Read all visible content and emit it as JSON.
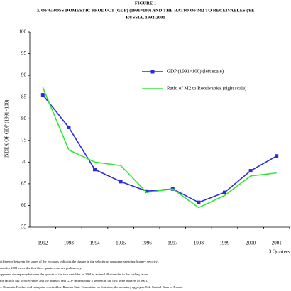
{
  "chart_data": {
    "type": "line",
    "title": "FIGURE 1",
    "subtitle": "X OF GROSS DOMESTIC PRODUCT (GDP) (1991=100) AND THE RATIO OF M2 TO RECEIVABLES (YE",
    "subtitle2": "RUSSIA, 1992-2001",
    "y_label": "INDEX OF GDP (1991=100)",
    "x_note": "3 Quarters",
    "categories": [
      "1992",
      "1993",
      "1994",
      "1995",
      "1996",
      "1997",
      "1998",
      "1999",
      "2000",
      "2001"
    ],
    "series": [
      {
        "name": "GDP (1991=100) (left scale)",
        "color": "#2a2ae0",
        "marker": true,
        "values": [
          85.5,
          78,
          68.3,
          65.5,
          63.3,
          63.8,
          60.7,
          63,
          68,
          71.4
        ]
      },
      {
        "name": "Ratio of M2 to Receivables (right scale)",
        "color": "#33e833",
        "marker": false,
        "values": [
          87.2,
          72.8,
          70,
          69.2,
          63,
          63.8,
          59.5,
          62.3,
          66.8,
          67.5
        ]
      }
    ],
    "ylim": [
      55,
      100
    ],
    "yticks": [
      55,
      60,
      65,
      70,
      75,
      80,
      85,
      90,
      95,
      100
    ],
    "notes": [
      "difference between the scales of the two axes indicates the change in the velocity of consumer spending (money velocity).",
      "data for 2001 cover the first three quarters and are preliminary.",
      "apparent discrepancy between the growth of the two variables in 2001 is a visual illusion due to the scaling factor.",
      "the ratio of M2 to receivables and the index of real GDP increased by 5 percent in the first three quarters of 2001.",
      "s: Domestic Product and enterprise receivables: Russian State Committee on Statistics; the monetary aggregate M2: Central Bank of Russia."
    ]
  }
}
